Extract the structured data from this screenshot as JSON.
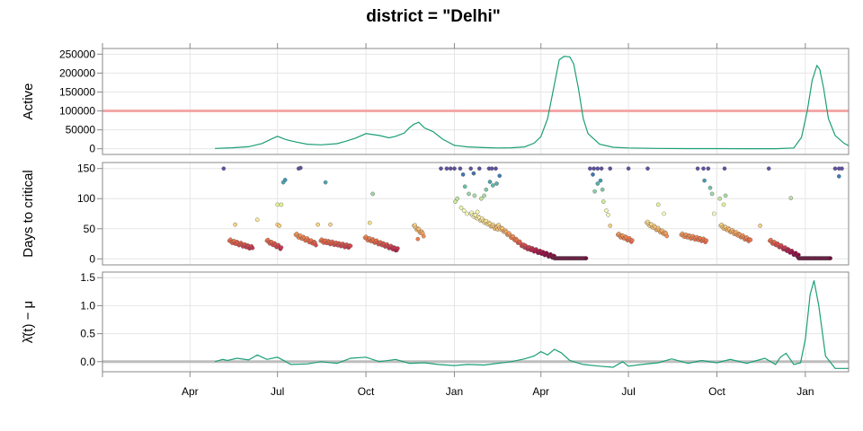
{
  "chart_data": {
    "type": "line",
    "title": "district = \"Delhi\"",
    "x_ticks": [
      "Apr",
      "Jul",
      "Oct",
      "Jan",
      "Apr",
      "Jul",
      "Oct",
      "Jan"
    ],
    "x_tick_dates": [
      "2020-04-01",
      "2020-07-01",
      "2020-10-01",
      "2021-01-01",
      "2021-04-01",
      "2021-07-01",
      "2021-10-01",
      "2022-01-01"
    ],
    "xlim": [
      "2020-01-01",
      "2022-02-15"
    ],
    "grid": true,
    "colors": {
      "line": "#1b9e77",
      "reference_active": "#f4a8a8",
      "reference_lambda": "#bdbdbd",
      "frame": "#8a8a8a"
    },
    "panels": [
      {
        "ylabel": "Active",
        "y_ticks": [
          "0",
          "50000",
          "100000",
          "150000",
          "200000",
          "250000"
        ],
        "y_tick_values": [
          0,
          50000,
          100000,
          150000,
          200000,
          250000
        ],
        "ylim": [
          -15000,
          265000
        ],
        "reference_line": 100000,
        "series": [
          {
            "x": [
              "2020-04-27",
              "2020-05-15",
              "2020-06-01",
              "2020-06-15",
              "2020-06-25",
              "2020-07-01",
              "2020-07-10",
              "2020-07-20",
              "2020-08-01",
              "2020-08-15",
              "2020-09-01",
              "2020-09-10",
              "2020-09-20",
              "2020-10-01",
              "2020-10-15",
              "2020-10-25",
              "2020-11-01",
              "2020-11-10",
              "2020-11-15",
              "2020-11-20",
              "2020-11-25",
              "2020-12-01",
              "2020-12-10",
              "2020-12-20",
              "2021-01-01",
              "2021-01-15",
              "2021-02-01",
              "2021-02-15",
              "2021-03-01",
              "2021-03-15",
              "2021-03-25",
              "2021-04-01",
              "2021-04-08",
              "2021-04-15",
              "2021-04-20",
              "2021-04-25",
              "2021-05-01",
              "2021-05-05",
              "2021-05-10",
              "2021-05-15",
              "2021-05-20",
              "2021-06-01",
              "2021-06-15",
              "2021-07-01",
              "2021-08-01",
              "2021-09-01",
              "2021-10-01",
              "2021-11-01",
              "2021-12-01",
              "2021-12-20",
              "2021-12-28",
              "2022-01-03",
              "2022-01-08",
              "2022-01-13",
              "2022-01-16",
              "2022-01-20",
              "2022-01-25",
              "2022-02-01",
              "2022-02-10",
              "2022-02-15"
            ],
            "y": [
              1000,
              2500,
              5500,
              14000,
              26000,
              33000,
              24000,
              18000,
              12000,
              10500,
              13500,
              20000,
              28000,
              40000,
              35000,
              29000,
              33000,
              42000,
              55000,
              65000,
              70000,
              55000,
              45000,
              25000,
              9000,
              5000,
              3000,
              2000,
              2500,
              5000,
              15000,
              32000,
              80000,
              170000,
              235000,
              244000,
              243000,
              225000,
              160000,
              80000,
              40000,
              12000,
              4000,
              2000,
              1000,
              500,
              400,
              300,
              200,
              2000,
              30000,
              100000,
              180000,
              220000,
              210000,
              160000,
              80000,
              35000,
              15000,
              8000
            ]
          }
        ]
      },
      {
        "ylabel": "Days to critical",
        "y_ticks": [
          "0",
          "50",
          "100",
          "150"
        ],
        "y_tick_values": [
          0,
          50,
          100,
          150
        ],
        "ylim": [
          -10,
          160
        ],
        "point_groups": [
          {
            "x_start": "2020-05-12",
            "x_end": "2020-06-05",
            "y_start": 30,
            "y_end": 18
          },
          {
            "x_start": "2020-06-20",
            "x_end": "2020-07-05",
            "y_start": 30,
            "y_end": 18
          },
          {
            "x_start": "2020-07-20",
            "x_end": "2020-08-10",
            "y_start": 40,
            "y_end": 25
          },
          {
            "x_start": "2020-08-15",
            "x_end": "2020-09-15",
            "y_start": 30,
            "y_end": 20
          },
          {
            "x_start": "2020-09-30",
            "x_end": "2020-11-03",
            "y_start": 35,
            "y_end": 15
          },
          {
            "x_start": "2020-11-20",
            "x_end": "2020-11-30",
            "y_start": 55,
            "y_end": 40
          },
          {
            "x_start": "2021-01-18",
            "x_end": "2021-02-15",
            "y_start": 75,
            "y_end": 50
          },
          {
            "x_start": "2021-02-15",
            "x_end": "2021-03-15",
            "y_start": 55,
            "y_end": 20
          },
          {
            "x_start": "2021-03-15",
            "x_end": "2021-04-15",
            "y_start": 20,
            "y_end": 3
          },
          {
            "x_start": "2021-04-15",
            "x_end": "2021-05-18",
            "y_start": 1,
            "y_end": 1
          },
          {
            "x_start": "2021-06-20",
            "x_end": "2021-07-05",
            "y_start": 40,
            "y_end": 30
          },
          {
            "x_start": "2021-07-20",
            "x_end": "2021-08-10",
            "y_start": 60,
            "y_end": 40
          },
          {
            "x_start": "2021-08-25",
            "x_end": "2021-09-20",
            "y_start": 40,
            "y_end": 30
          },
          {
            "x_start": "2021-10-05",
            "x_end": "2021-11-05",
            "y_start": 55,
            "y_end": 30
          },
          {
            "x_start": "2021-11-25",
            "x_end": "2021-12-25",
            "y_start": 30,
            "y_end": 5
          },
          {
            "x_start": "2021-12-25",
            "x_end": "2022-01-27",
            "y_start": 1,
            "y_end": 1
          }
        ],
        "points": [
          {
            "x": "2020-05-06",
            "y": 150
          },
          {
            "x": "2020-05-18",
            "y": 57
          },
          {
            "x": "2020-06-10",
            "y": 65
          },
          {
            "x": "2020-07-01",
            "y": 90
          },
          {
            "x": "2020-07-05",
            "y": 90
          },
          {
            "x": "2020-07-07",
            "y": 127
          },
          {
            "x": "2020-07-09",
            "y": 131
          },
          {
            "x": "2020-07-01",
            "y": 57
          },
          {
            "x": "2020-07-03",
            "y": 55
          },
          {
            "x": "2020-07-23",
            "y": 150
          },
          {
            "x": "2020-07-25",
            "y": 151
          },
          {
            "x": "2020-08-12",
            "y": 57
          },
          {
            "x": "2020-08-20",
            "y": 127
          },
          {
            "x": "2020-08-25",
            "y": 57
          },
          {
            "x": "2020-10-08",
            "y": 108
          },
          {
            "x": "2020-10-05",
            "y": 60
          },
          {
            "x": "2020-11-24",
            "y": 33
          },
          {
            "x": "2020-12-18",
            "y": 150
          },
          {
            "x": "2020-12-24",
            "y": 150
          },
          {
            "x": "2020-12-28",
            "y": 150
          },
          {
            "x": "2021-01-01",
            "y": 150
          },
          {
            "x": "2021-01-07",
            "y": 150
          },
          {
            "x": "2021-01-10",
            "y": 140
          },
          {
            "x": "2021-01-18",
            "y": 150
          },
          {
            "x": "2021-01-21",
            "y": 142
          },
          {
            "x": "2021-01-27",
            "y": 150
          },
          {
            "x": "2021-02-06",
            "y": 150
          },
          {
            "x": "2021-02-09",
            "y": 150
          },
          {
            "x": "2021-02-13",
            "y": 150
          },
          {
            "x": "2021-01-12",
            "y": 120
          },
          {
            "x": "2021-01-16",
            "y": 108
          },
          {
            "x": "2021-01-22",
            "y": 105
          },
          {
            "x": "2021-01-29",
            "y": 100
          },
          {
            "x": "2021-02-03",
            "y": 115
          },
          {
            "x": "2021-02-07",
            "y": 128
          },
          {
            "x": "2021-02-10",
            "y": 122
          },
          {
            "x": "2021-02-14",
            "y": 125
          },
          {
            "x": "2021-02-17",
            "y": 138
          },
          {
            "x": "2021-01-02",
            "y": 95
          },
          {
            "x": "2021-01-04",
            "y": 100
          },
          {
            "x": "2021-01-08",
            "y": 85
          },
          {
            "x": "2021-01-11",
            "y": 80
          },
          {
            "x": "2021-01-14",
            "y": 75
          },
          {
            "x": "2021-01-25",
            "y": 78
          },
          {
            "x": "2021-02-01",
            "y": 105
          },
          {
            "x": "2021-05-22",
            "y": 150
          },
          {
            "x": "2021-05-26",
            "y": 150
          },
          {
            "x": "2021-05-30",
            "y": 150
          },
          {
            "x": "2021-06-03",
            "y": 150
          },
          {
            "x": "2021-06-12",
            "y": 150
          },
          {
            "x": "2021-05-25",
            "y": 140
          },
          {
            "x": "2021-05-30",
            "y": 125
          },
          {
            "x": "2021-06-02",
            "y": 130
          },
          {
            "x": "2021-05-27",
            "y": 112
          },
          {
            "x": "2021-06-04",
            "y": 115
          },
          {
            "x": "2021-06-05",
            "y": 95
          },
          {
            "x": "2021-06-08",
            "y": 80
          },
          {
            "x": "2021-06-10",
            "y": 73
          },
          {
            "x": "2021-06-12",
            "y": 55
          },
          {
            "x": "2021-07-01",
            "y": 150
          },
          {
            "x": "2021-07-21",
            "y": 150
          },
          {
            "x": "2021-08-01",
            "y": 90
          },
          {
            "x": "2021-08-07",
            "y": 75
          },
          {
            "x": "2021-09-11",
            "y": 150
          },
          {
            "x": "2021-09-17",
            "y": 150
          },
          {
            "x": "2021-09-22",
            "y": 150
          },
          {
            "x": "2021-10-09",
            "y": 150
          },
          {
            "x": "2021-09-18",
            "y": 130
          },
          {
            "x": "2021-09-24",
            "y": 118
          },
          {
            "x": "2021-09-26",
            "y": 108
          },
          {
            "x": "2021-10-08",
            "y": 90
          },
          {
            "x": "2021-10-04",
            "y": 100
          },
          {
            "x": "2021-10-10",
            "y": 105
          },
          {
            "x": "2021-09-28",
            "y": 75
          },
          {
            "x": "2021-11-15",
            "y": 55
          },
          {
            "x": "2021-11-24",
            "y": 150
          },
          {
            "x": "2021-12-17",
            "y": 101
          },
          {
            "x": "2022-02-01",
            "y": 150
          },
          {
            "x": "2022-02-05",
            "y": 150
          },
          {
            "x": "2022-02-08",
            "y": 150
          },
          {
            "x": "2022-02-05",
            "y": 137
          }
        ]
      },
      {
        "ylabel": "λ̂(t) − μ",
        "y_ticks": [
          "0.0",
          "0.5",
          "1.0",
          "1.5"
        ],
        "y_tick_values": [
          0.0,
          0.5,
          1.0,
          1.5
        ],
        "ylim": [
          -0.18,
          1.6
        ],
        "reference_line": 0,
        "series": [
          {
            "x": [
              "2020-04-27",
              "2020-05-05",
              "2020-05-10",
              "2020-05-20",
              "2020-06-01",
              "2020-06-10",
              "2020-06-20",
              "2020-07-01",
              "2020-07-15",
              "2020-08-01",
              "2020-08-15",
              "2020-09-01",
              "2020-09-15",
              "2020-10-01",
              "2020-10-15",
              "2020-11-01",
              "2020-11-15",
              "2020-12-01",
              "2020-12-15",
              "2021-01-01",
              "2021-01-15",
              "2021-02-01",
              "2021-02-15",
              "2021-03-01",
              "2021-03-15",
              "2021-03-25",
              "2021-04-01",
              "2021-04-08",
              "2021-04-15",
              "2021-04-22",
              "2021-05-01",
              "2021-05-15",
              "2021-06-01",
              "2021-06-15",
              "2021-06-25",
              "2021-07-01",
              "2021-07-15",
              "2021-08-01",
              "2021-08-15",
              "2021-09-01",
              "2021-09-15",
              "2021-10-01",
              "2021-10-15",
              "2021-11-01",
              "2021-11-20",
              "2021-12-01",
              "2021-12-06",
              "2021-12-12",
              "2021-12-20",
              "2021-12-27",
              "2022-01-01",
              "2022-01-06",
              "2022-01-10",
              "2022-01-15",
              "2022-01-22",
              "2022-02-01",
              "2022-02-15"
            ],
            "y": [
              0.0,
              0.04,
              0.02,
              0.06,
              0.03,
              0.12,
              0.04,
              0.08,
              -0.05,
              -0.04,
              0.0,
              -0.03,
              0.06,
              0.08,
              0.0,
              0.04,
              -0.03,
              -0.02,
              -0.05,
              -0.07,
              -0.05,
              -0.06,
              -0.03,
              0.0,
              0.05,
              0.1,
              0.18,
              0.12,
              0.22,
              0.16,
              0.02,
              -0.05,
              -0.08,
              -0.1,
              0.0,
              -0.08,
              -0.05,
              -0.02,
              0.05,
              -0.03,
              0.02,
              -0.02,
              0.04,
              -0.03,
              0.06,
              -0.05,
              0.08,
              0.15,
              -0.05,
              -0.02,
              0.4,
              1.2,
              1.45,
              1.0,
              0.1,
              -0.12,
              -0.12
            ]
          }
        ]
      }
    ]
  }
}
